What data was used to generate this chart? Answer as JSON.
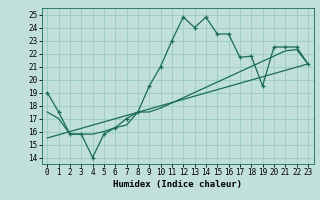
{
  "xlabel": "Humidex (Indice chaleur)",
  "bg_color": "#c2e0da",
  "line_color": "#1a6b5a",
  "grid_color": "#9ecec6",
  "xlim": [
    -0.5,
    23.5
  ],
  "ylim": [
    13.5,
    25.5
  ],
  "xticks": [
    0,
    1,
    2,
    3,
    4,
    5,
    6,
    7,
    8,
    9,
    10,
    11,
    12,
    13,
    14,
    15,
    16,
    17,
    18,
    19,
    20,
    21,
    22,
    23
  ],
  "yticks": [
    14,
    15,
    16,
    17,
    18,
    19,
    20,
    21,
    22,
    23,
    24,
    25
  ],
  "main_line_x": [
    0,
    1,
    2,
    3,
    4,
    5,
    6,
    7,
    8,
    9,
    10,
    11,
    12,
    13,
    14,
    15,
    16,
    17,
    18,
    19,
    20,
    21,
    22,
    23
  ],
  "main_line_y": [
    19.0,
    17.5,
    15.8,
    15.8,
    14.0,
    15.8,
    16.3,
    17.0,
    17.5,
    19.5,
    21.0,
    23.0,
    24.8,
    24.0,
    24.8,
    23.5,
    23.5,
    21.7,
    21.8,
    19.5,
    22.5,
    22.5,
    22.5,
    21.2
  ],
  "trend1_x": [
    0,
    1,
    2,
    3,
    4,
    5,
    6,
    7,
    8,
    9,
    10,
    11,
    12,
    13,
    14,
    15,
    16,
    17,
    18,
    19,
    20,
    21,
    22,
    23
  ],
  "trend1_y": [
    17.5,
    17.0,
    15.8,
    15.8,
    15.8,
    16.0,
    16.3,
    16.5,
    17.5,
    17.5,
    17.8,
    18.2,
    18.6,
    19.0,
    19.4,
    19.8,
    20.2,
    20.6,
    21.0,
    21.4,
    21.8,
    22.2,
    22.3,
    21.2
  ],
  "trend2_x": [
    0,
    23
  ],
  "trend2_y": [
    15.5,
    21.2
  ]
}
